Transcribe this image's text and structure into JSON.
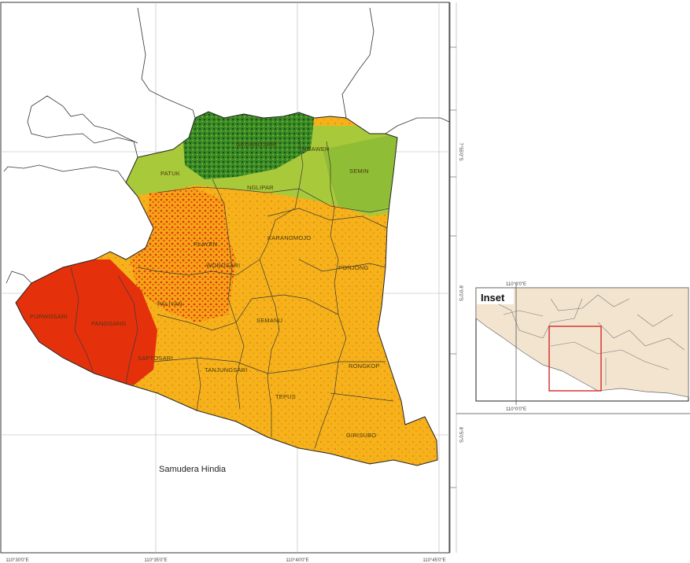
{
  "map": {
    "sea_label": "Samudera Hindia",
    "districts": [
      {
        "id": "patuk",
        "label": "PATUK"
      },
      {
        "id": "playen",
        "label": "PLAYEN"
      },
      {
        "id": "ngawen",
        "label": "NGAWEN"
      },
      {
        "id": "semin",
        "label": "SEMIN"
      },
      {
        "id": "nglipar",
        "label": "NGLIPAR"
      },
      {
        "id": "karangmojo",
        "label": "KARANGMOJO"
      },
      {
        "id": "ponjong",
        "label": "PONJONG"
      },
      {
        "id": "wonosari",
        "label": "WONOSARI"
      },
      {
        "id": "paliyan",
        "label": "PALIYAN"
      },
      {
        "id": "purwosari",
        "label": "PURWOSARI"
      },
      {
        "id": "panggang",
        "label": "PANGGANG"
      },
      {
        "id": "saptosari",
        "label": "SAPTOSARI"
      },
      {
        "id": "semanu",
        "label": "SEMANU"
      },
      {
        "id": "tanjungsari",
        "label": "TANJUNGSARI"
      },
      {
        "id": "tepus",
        "label": "TEPUS"
      },
      {
        "id": "rongkop",
        "label": "RONGKOP"
      },
      {
        "id": "girisubo",
        "label": "GIRISUBO"
      },
      {
        "id": "gedangsari",
        "label": "GEDANGSARI"
      }
    ],
    "zone_colors": {
      "very_high": "#e5300c",
      "high": "#f6b21a",
      "medium": "#a8c93a",
      "low": "#2f7a1e"
    },
    "grid_labels": {
      "bottom": [
        "110°30'0\"E",
        "110°35'0\"E",
        "110°40'0\"E",
        "110°45'0\"E"
      ],
      "right": [
        "7°55'0\"S",
        "8°0'0\"S",
        "8°5'0\"S"
      ]
    }
  },
  "inset": {
    "title": "Inset",
    "top_label": "110°0'0\"E",
    "bottom_label": "110°0'0\"E",
    "right_label": "8°0'0\"S",
    "land_color": "#f2e4cf",
    "highlight_color": "#d42a2a"
  }
}
